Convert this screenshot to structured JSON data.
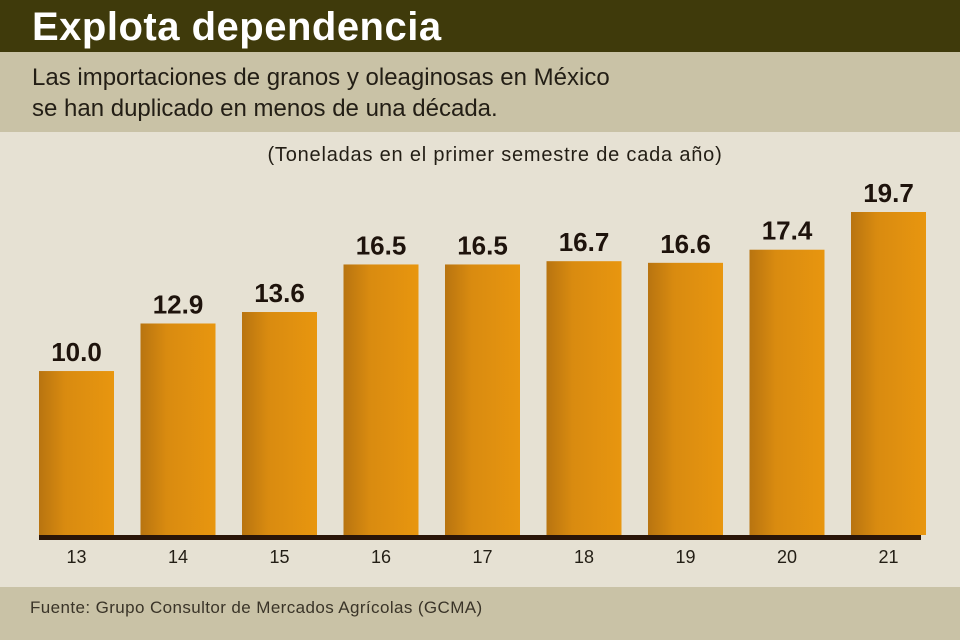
{
  "header": {
    "title": "Explota dependencia",
    "subtitle_lines": [
      "Las importaciones de granos y oleaginosas en México",
      "se han duplicado en menos de una década."
    ]
  },
  "footer": {
    "source": "Fuente: Grupo Consultor de Mercados Agrícolas (GCMA)"
  },
  "colors": {
    "header_bg": "#3f3a0b",
    "band_bg": "#c9c2a6",
    "chart_bg": "#e6e1d3",
    "bar_fill": "#e8960f",
    "bar_shade": "#b87410",
    "axis_line": "#2a1508",
    "text_dark": "#231e15"
  },
  "chart_data": {
    "type": "bar",
    "title": "Explota dependencia",
    "subtitle": "(Toneladas en el primer semestre de cada año)",
    "categories": [
      "13",
      "14",
      "15",
      "16",
      "17",
      "18",
      "19",
      "20",
      "21"
    ],
    "values": [
      10.0,
      12.9,
      13.6,
      16.5,
      16.5,
      16.7,
      16.6,
      17.4,
      19.7
    ],
    "labels": [
      "10.0",
      "12.9",
      "13.6",
      "16.5",
      "16.5",
      "16.7",
      "16.6",
      "17.4",
      "19.7"
    ],
    "xlabel": "",
    "ylabel": "Toneladas",
    "ylim": [
      0,
      19.7
    ],
    "grid": false,
    "legend": "none"
  }
}
